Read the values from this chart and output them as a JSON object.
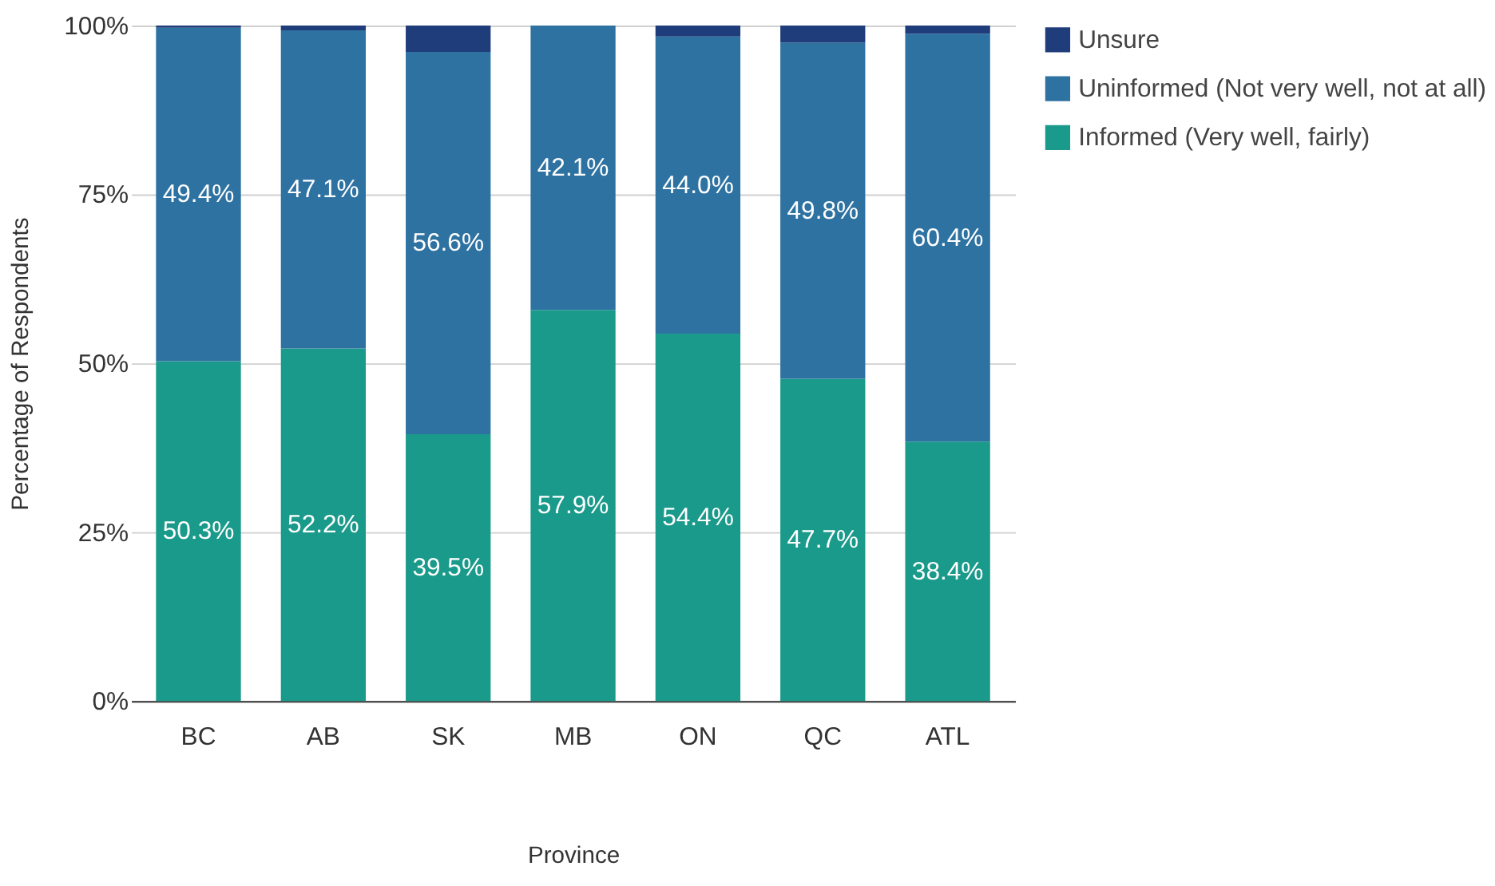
{
  "chart_data": {
    "type": "bar",
    "stacked": true,
    "xlabel": "Province",
    "ylabel": "Percentage of Respondents",
    "categories": [
      "BC",
      "AB",
      "SK",
      "MB",
      "ON",
      "QC",
      "ATL"
    ],
    "series": [
      {
        "name": "Informed (Very well, fairly)",
        "color": "#1a9a8a",
        "values": [
          50.3,
          52.2,
          39.5,
          57.9,
          54.4,
          47.7,
          38.4
        ],
        "value_labels": [
          "50.3%",
          "52.2%",
          "39.5%",
          "57.9%",
          "54.4%",
          "47.7%",
          "38.4%"
        ]
      },
      {
        "name": "Uninformed (Not very well, not at all)",
        "color": "#2e72a2",
        "values": [
          49.4,
          47.1,
          56.6,
          42.1,
          44.0,
          49.8,
          60.4
        ],
        "value_labels": [
          "49.4%",
          "47.1%",
          "56.6%",
          "42.1%",
          "44.0%",
          "49.8%",
          "60.4%"
        ]
      },
      {
        "name": "Unsure",
        "color": "#1f3d7a",
        "values": [
          0.3,
          0.7,
          3.9,
          0,
          1.6,
          2.5,
          1.2
        ]
      }
    ],
    "ylim": [
      0,
      100
    ],
    "yticks": [
      {
        "value": 0,
        "label": "0%"
      },
      {
        "value": 25,
        "label": "25%"
      },
      {
        "value": 50,
        "label": "50%"
      },
      {
        "value": 75,
        "label": "75%"
      },
      {
        "value": 100,
        "label": "100%"
      }
    ],
    "grid": "y",
    "legend": "top right"
  }
}
